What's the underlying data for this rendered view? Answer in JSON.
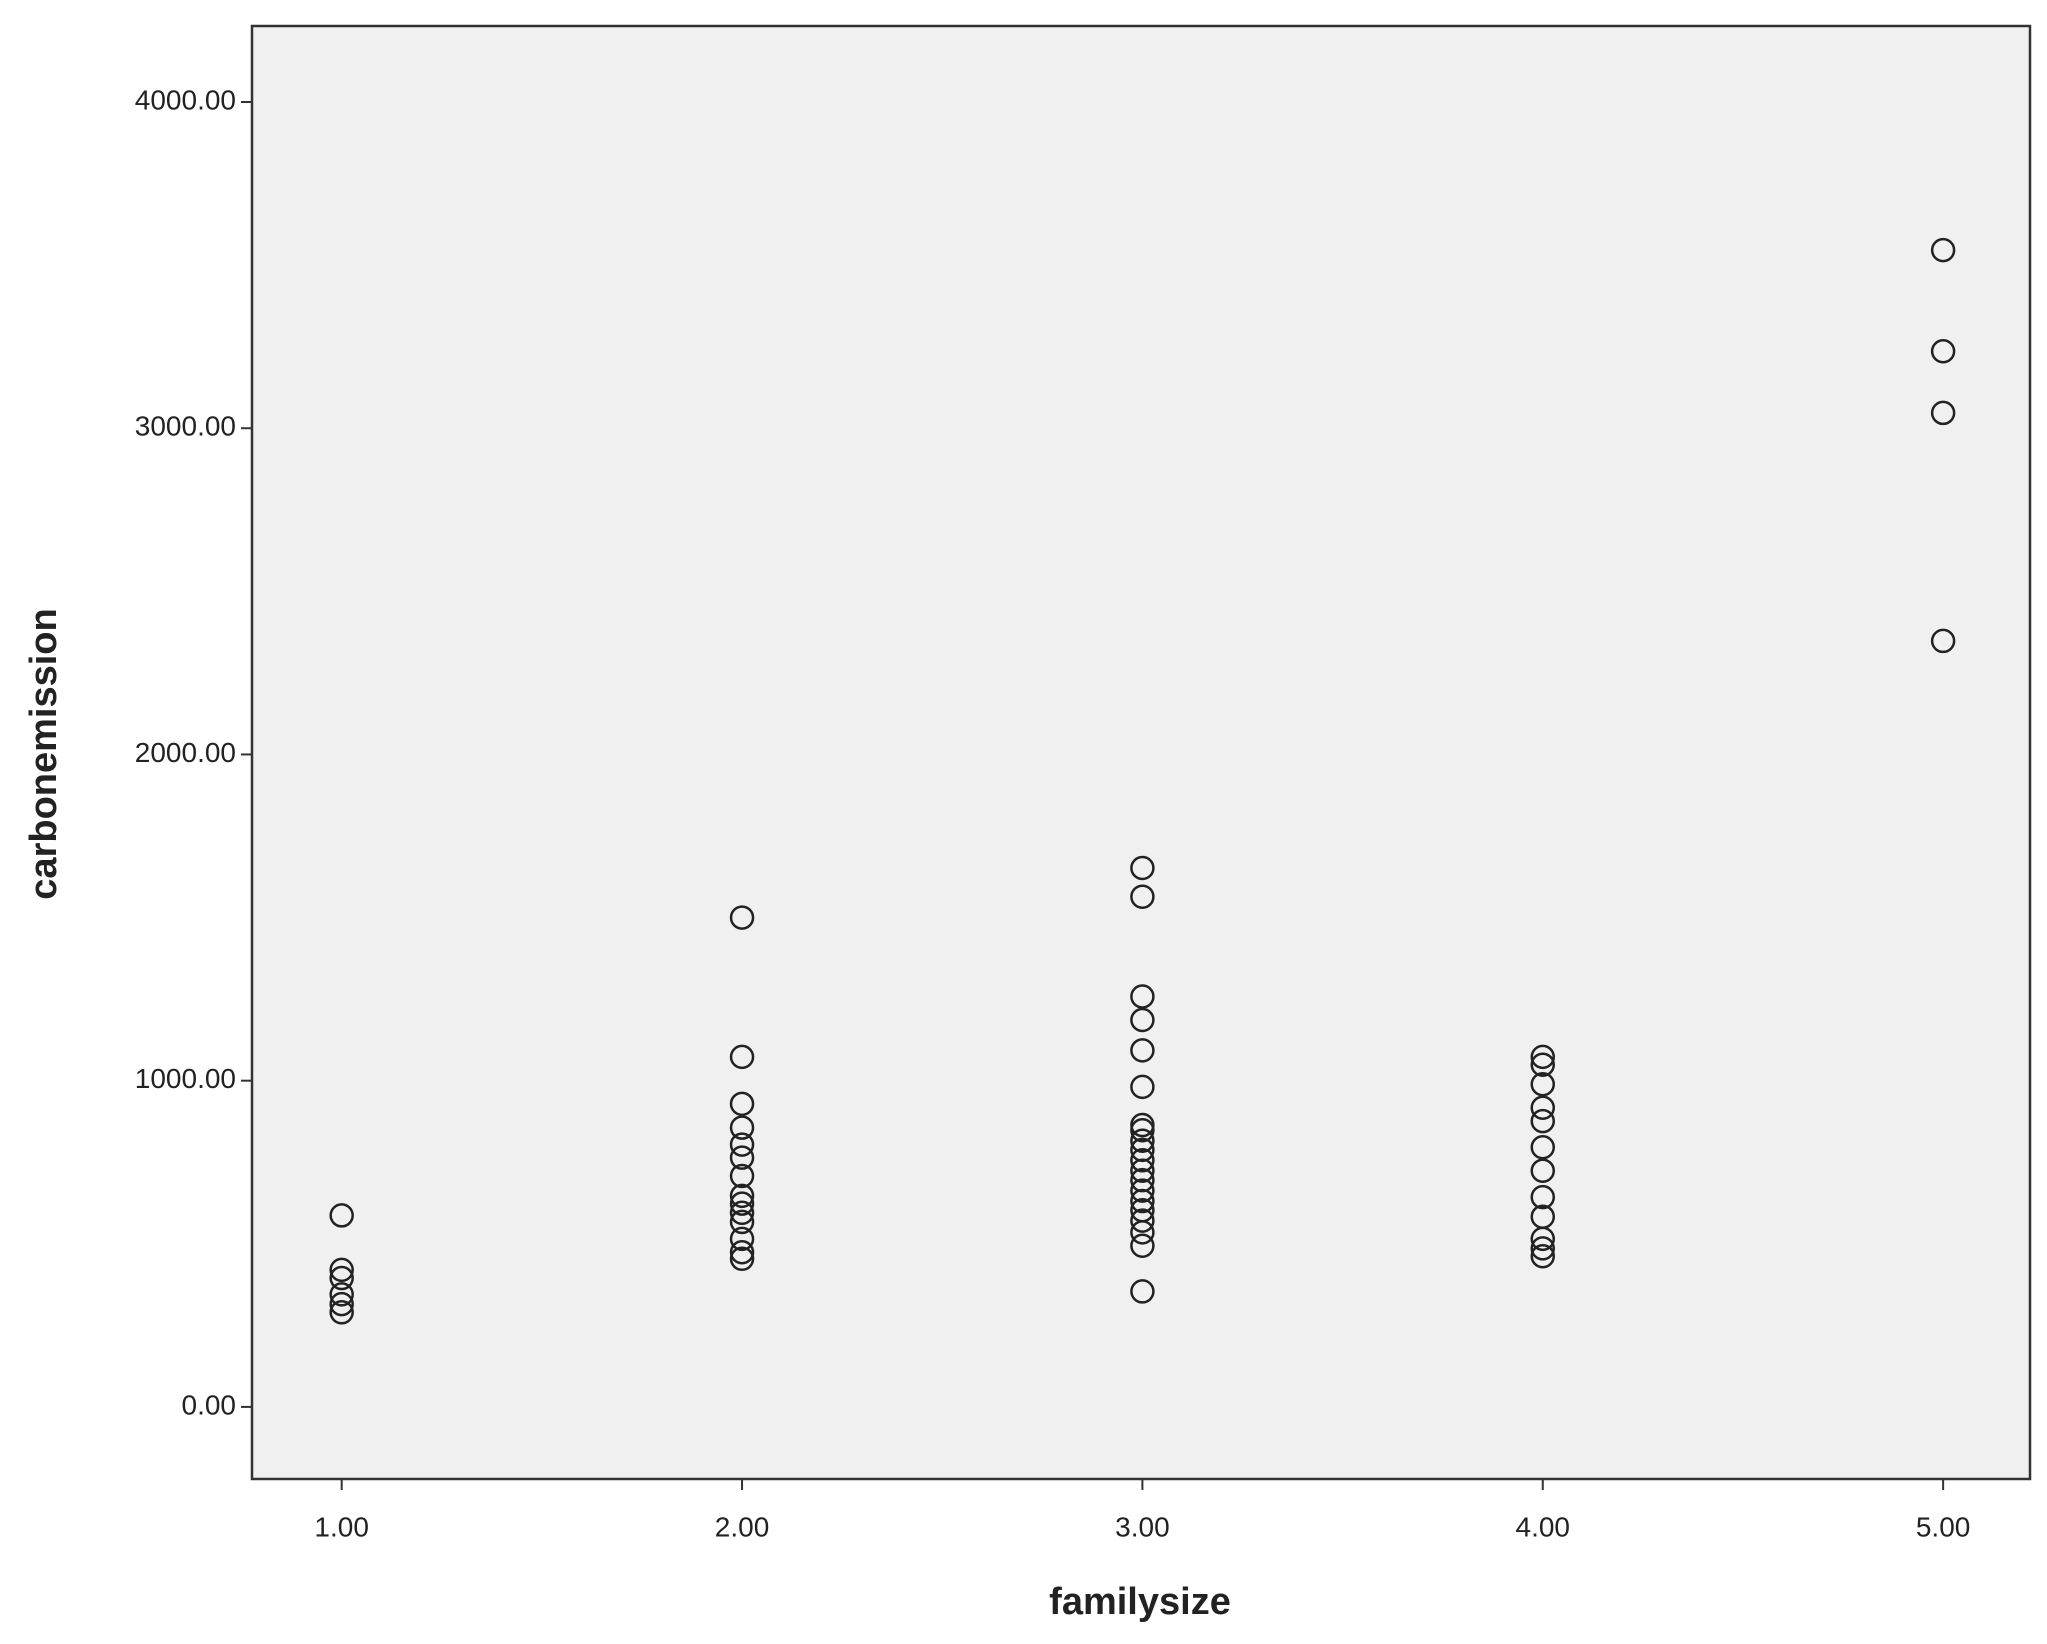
{
  "chart_data": {
    "type": "scatter",
    "x_label": "familysize",
    "y_label": "carbonemission",
    "x": [
      1,
      1,
      1,
      1,
      1,
      1,
      2,
      2,
      2,
      2,
      2,
      2,
      2,
      2,
      2,
      2,
      2,
      2,
      2,
      2,
      3,
      3,
      3,
      3,
      3,
      3,
      3,
      3,
      3,
      3,
      3,
      3,
      3,
      3,
      3,
      3,
      3,
      3,
      3,
      3,
      4,
      4,
      4,
      4,
      4,
      4,
      4,
      4,
      4,
      4,
      4,
      4,
      5,
      5,
      5,
      5
    ],
    "series": [
      {
        "color": "#222222",
        "values": [
          587,
          420,
          395,
          345,
          315,
          290,
          1500,
          1073,
          929,
          856,
          804,
          764,
          708,
          647,
          623,
          595,
          567,
          515,
          474,
          454,
          1652,
          1564,
          1258,
          1186,
          1093,
          981,
          864,
          848,
          816,
          788,
          756,
          724,
          695,
          663,
          631,
          603,
          571,
          535,
          494,
          354,
          1073,
          1049,
          989,
          917,
          876,
          796,
          724,
          643,
          583,
          515,
          486,
          462,
          3546,
          3236,
          3047,
          2348
        ]
      }
    ],
    "xlim": [
      0.776,
      5.217
    ],
    "ylim": [
      -221,
      4233
    ],
    "xticks": [
      {
        "value": 1,
        "label": "1.00"
      },
      {
        "value": 2,
        "label": "2.00"
      },
      {
        "value": 3,
        "label": "3.00"
      },
      {
        "value": 4,
        "label": "4.00"
      },
      {
        "value": 5,
        "label": "5.00"
      }
    ],
    "yticks": [
      {
        "value": 0,
        "label": "0.00"
      },
      {
        "value": 1000,
        "label": "1000.00"
      },
      {
        "value": 2000,
        "label": "2000.00"
      },
      {
        "value": 3000,
        "label": "3000.00"
      },
      {
        "value": 4000,
        "label": "4000.00"
      }
    ],
    "background": "#f0f0f0"
  }
}
